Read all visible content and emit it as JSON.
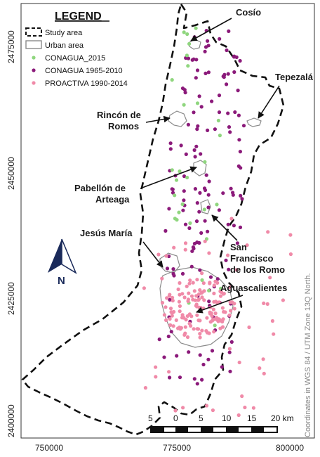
{
  "legend": {
    "title": "LEGEND",
    "items": [
      {
        "label": "Study area",
        "symbol": "dashed-outline"
      },
      {
        "label": "Urban area",
        "symbol": "gray-box"
      },
      {
        "label": "CONAGUA_2015",
        "symbol": "dot",
        "color": "#8fd67e"
      },
      {
        "label": "CONAGUA 1965-2010",
        "symbol": "dot",
        "color": "#8b1a7a"
      },
      {
        "label": "PROACTIVA 1990-2014",
        "symbol": "dot",
        "color": "#f08aa8"
      }
    ]
  },
  "axes": {
    "y_ticks": [
      "2475000",
      "2450000",
      "2425000",
      "2400000"
    ],
    "x_ticks": [
      "750000",
      "775000",
      "800000"
    ]
  },
  "places": {
    "cosio": "Cosío",
    "tepezala": "Tepezalá",
    "rincon_1": "Rincón de",
    "rincon_2": "Romos",
    "pabellon_1": "Pabellón de",
    "pabellon_2": "Arteaga",
    "jesus_maria": "Jesús María",
    "sf_1": "San",
    "sf_2": "Francisco",
    "sf_3": "de los Romo",
    "aguascalientes": "Aguascalientes"
  },
  "north_arrow": {
    "label": "N"
  },
  "scale_bar": {
    "labels": [
      "5",
      "0",
      "5",
      "10",
      "15",
      "20 km"
    ]
  },
  "coordinate_note": "Coordinates in WGS 84 / UTM Zone 13Q North.",
  "colors": {
    "conagua_2015": "#8fd67e",
    "conagua_1965_2010": "#8b1a7a",
    "proactiva": "#f08aa8",
    "boundary": "#111111",
    "urban": "#8a8a8a",
    "north": "#1a2a5a"
  }
}
